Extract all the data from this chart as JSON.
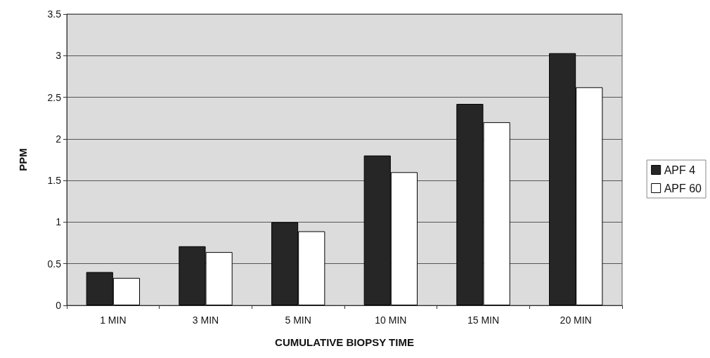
{
  "chart_data": {
    "type": "bar",
    "xlabel": "CUMULATIVE BIOPSY TIME",
    "ylabel": "PPM",
    "categories": [
      "1 MIN",
      "3 MIN",
      "5 MIN",
      "10 MIN",
      "15 MIN",
      "20 MIN"
    ],
    "series": [
      {
        "name": "APF 4",
        "color": "#262626",
        "values": [
          0.4,
          0.71,
          1.0,
          1.8,
          2.42,
          3.03
        ]
      },
      {
        "name": "APF 60",
        "color": "#ffffff",
        "values": [
          0.33,
          0.64,
          0.89,
          1.6,
          2.2,
          2.62
        ]
      }
    ],
    "ylim": [
      0,
      3.5
    ],
    "yticks": [
      0,
      0.5,
      1,
      1.5,
      2,
      2.5,
      3,
      3.5
    ],
    "grid": "y",
    "legend": "right"
  }
}
